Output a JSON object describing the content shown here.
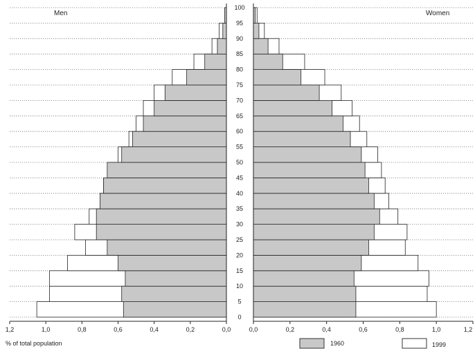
{
  "chart_data": {
    "type": "bar",
    "orientation": "population-pyramid",
    "left_panel_label": "Men",
    "right_panel_label": "Women",
    "x_axis_label": "% of total population",
    "x_ticks_left": [
      "1,2",
      "1,0",
      "0,8",
      "0,6",
      "0,4",
      "0,2",
      "0,0"
    ],
    "x_ticks_right": [
      "0,0",
      "0,2",
      "0,4",
      "0,6",
      "0,8",
      "1,0",
      "1,2"
    ],
    "x_range": [
      0,
      1.2
    ],
    "age_ticks": [
      "0",
      "5",
      "10",
      "15",
      "20",
      "25",
      "30",
      "35",
      "40",
      "45",
      "50",
      "55",
      "60",
      "65",
      "70",
      "75",
      "80",
      "85",
      "90",
      "95",
      "100"
    ],
    "age_range": [
      0,
      100
    ],
    "gridlines": "horizontal-dotted",
    "legend_placement": "bottom-right",
    "series": [
      {
        "name": "1960",
        "fill": "#c8c8c8",
        "ages": [
          0,
          5,
          10,
          15,
          20,
          25,
          30,
          35,
          40,
          45,
          50,
          55,
          60,
          65,
          70,
          75,
          80,
          85,
          90,
          95
        ],
        "men": [
          0.57,
          0.58,
          0.56,
          0.6,
          0.66,
          0.72,
          0.72,
          0.7,
          0.68,
          0.66,
          0.58,
          0.52,
          0.46,
          0.4,
          0.34,
          0.22,
          0.12,
          0.05,
          0.02,
          0.01
        ],
        "women": [
          0.56,
          0.56,
          0.55,
          0.59,
          0.63,
          0.66,
          0.69,
          0.66,
          0.63,
          0.61,
          0.59,
          0.53,
          0.49,
          0.43,
          0.36,
          0.26,
          0.16,
          0.08,
          0.03,
          0.01
        ]
      },
      {
        "name": "1999",
        "fill": "#ffffff",
        "ages": [
          0,
          5,
          10,
          15,
          20,
          25,
          30,
          35,
          40,
          45,
          50,
          55,
          60,
          65,
          70,
          75,
          80,
          85,
          90,
          95
        ],
        "men": [
          1.05,
          0.98,
          0.98,
          0.88,
          0.78,
          0.84,
          0.76,
          0.7,
          0.68,
          0.64,
          0.6,
          0.54,
          0.5,
          0.46,
          0.4,
          0.3,
          0.18,
          0.08,
          0.04,
          0.01
        ],
        "women": [
          1.0,
          0.95,
          0.96,
          0.9,
          0.83,
          0.84,
          0.79,
          0.74,
          0.72,
          0.7,
          0.68,
          0.62,
          0.58,
          0.54,
          0.48,
          0.39,
          0.28,
          0.14,
          0.06,
          0.02
        ]
      }
    ]
  }
}
